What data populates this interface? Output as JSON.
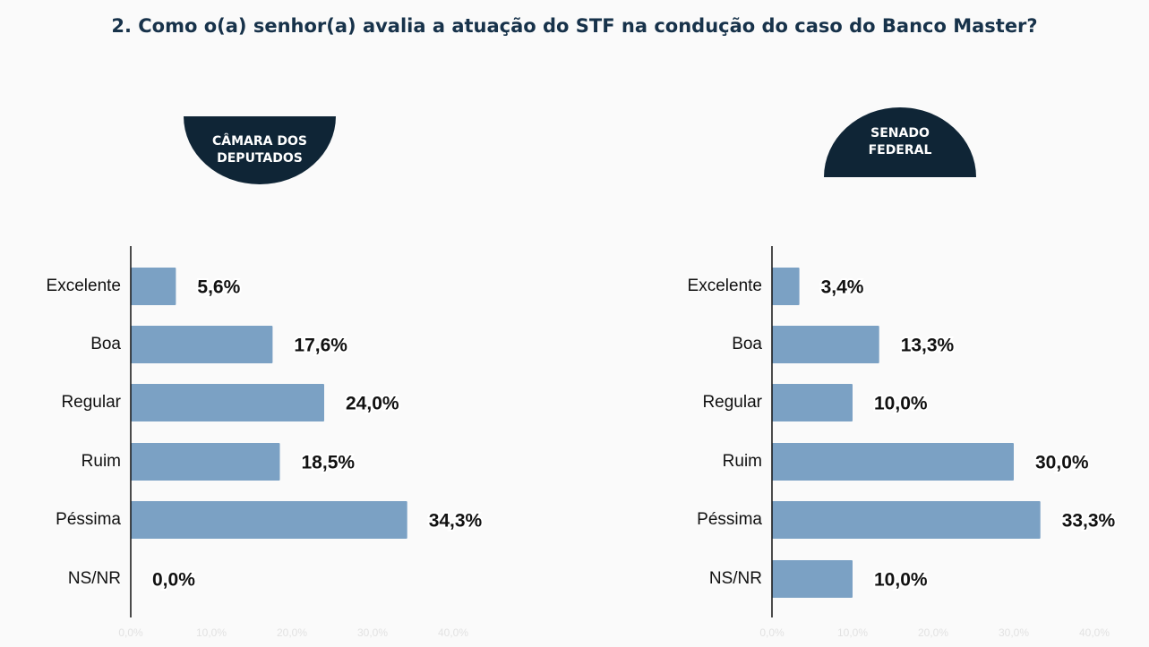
{
  "title": "2. Como o(a) senhor(a) avalia a atuação do STF na condução do caso do Banco Master?",
  "bar_color": "#7ba1c4",
  "chart_data": [
    {
      "type": "bar",
      "orientation": "horizontal",
      "title": "CÂMARA DOS\nDEPUTADOS",
      "categories": [
        "Excelente",
        "Boa",
        "Regular",
        "Ruim",
        "Péssima",
        "NS/NR"
      ],
      "values": [
        5.6,
        17.6,
        24.0,
        18.5,
        34.3,
        0.0
      ],
      "labels": [
        "5,6%",
        "17,6%",
        "24,0%",
        "18,5%",
        "34,3%",
        "0,0%"
      ],
      "xlim": [
        0,
        40
      ],
      "xticks": [
        "0,0%",
        "10,0%",
        "20,0%",
        "30,0%",
        "40,0%"
      ]
    },
    {
      "type": "bar",
      "orientation": "horizontal",
      "title": "SENADO\nFEDERAL",
      "categories": [
        "Excelente",
        "Boa",
        "Regular",
        "Ruim",
        "Péssima",
        "NS/NR"
      ],
      "values": [
        3.4,
        13.3,
        10.0,
        30.0,
        33.3,
        10.0
      ],
      "labels": [
        "3,4%",
        "13,3%",
        "10,0%",
        "30,0%",
        "33,3%",
        "10,0%"
      ],
      "xlim": [
        0,
        40
      ],
      "xticks": [
        "0,0%",
        "10,0%",
        "20,0%",
        "30,0%",
        "40,0%"
      ]
    }
  ]
}
